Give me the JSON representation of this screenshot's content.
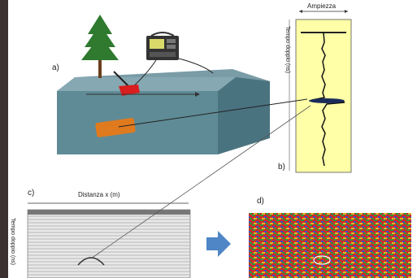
{
  "panels": {
    "a": "a)",
    "b": "b)",
    "c": "c)",
    "d": "d)"
  },
  "trace_panel": {
    "amplitude_label": "Ampiezza",
    "time_label": "Tempo doppio (ns)"
  },
  "radargram": {
    "distance_label": "Distanza x (m)",
    "time_label": "Tempo doppio (ns)"
  },
  "colors": {
    "ground_top": "#7a9ca6",
    "ground_front": "#5f8b96",
    "ground_side": "#4a7380",
    "trace_bg": "#ffffa8",
    "target": "#e07a1e",
    "antenna": "#d81e1e",
    "tree": "#2f7a2f",
    "arrow": "#4f86c6"
  },
  "icons": {
    "tree": "tree-icon",
    "control_unit": "gpr-control-unit-icon",
    "antenna": "gpr-antenna-icon",
    "arrow": "right-arrow-icon"
  }
}
